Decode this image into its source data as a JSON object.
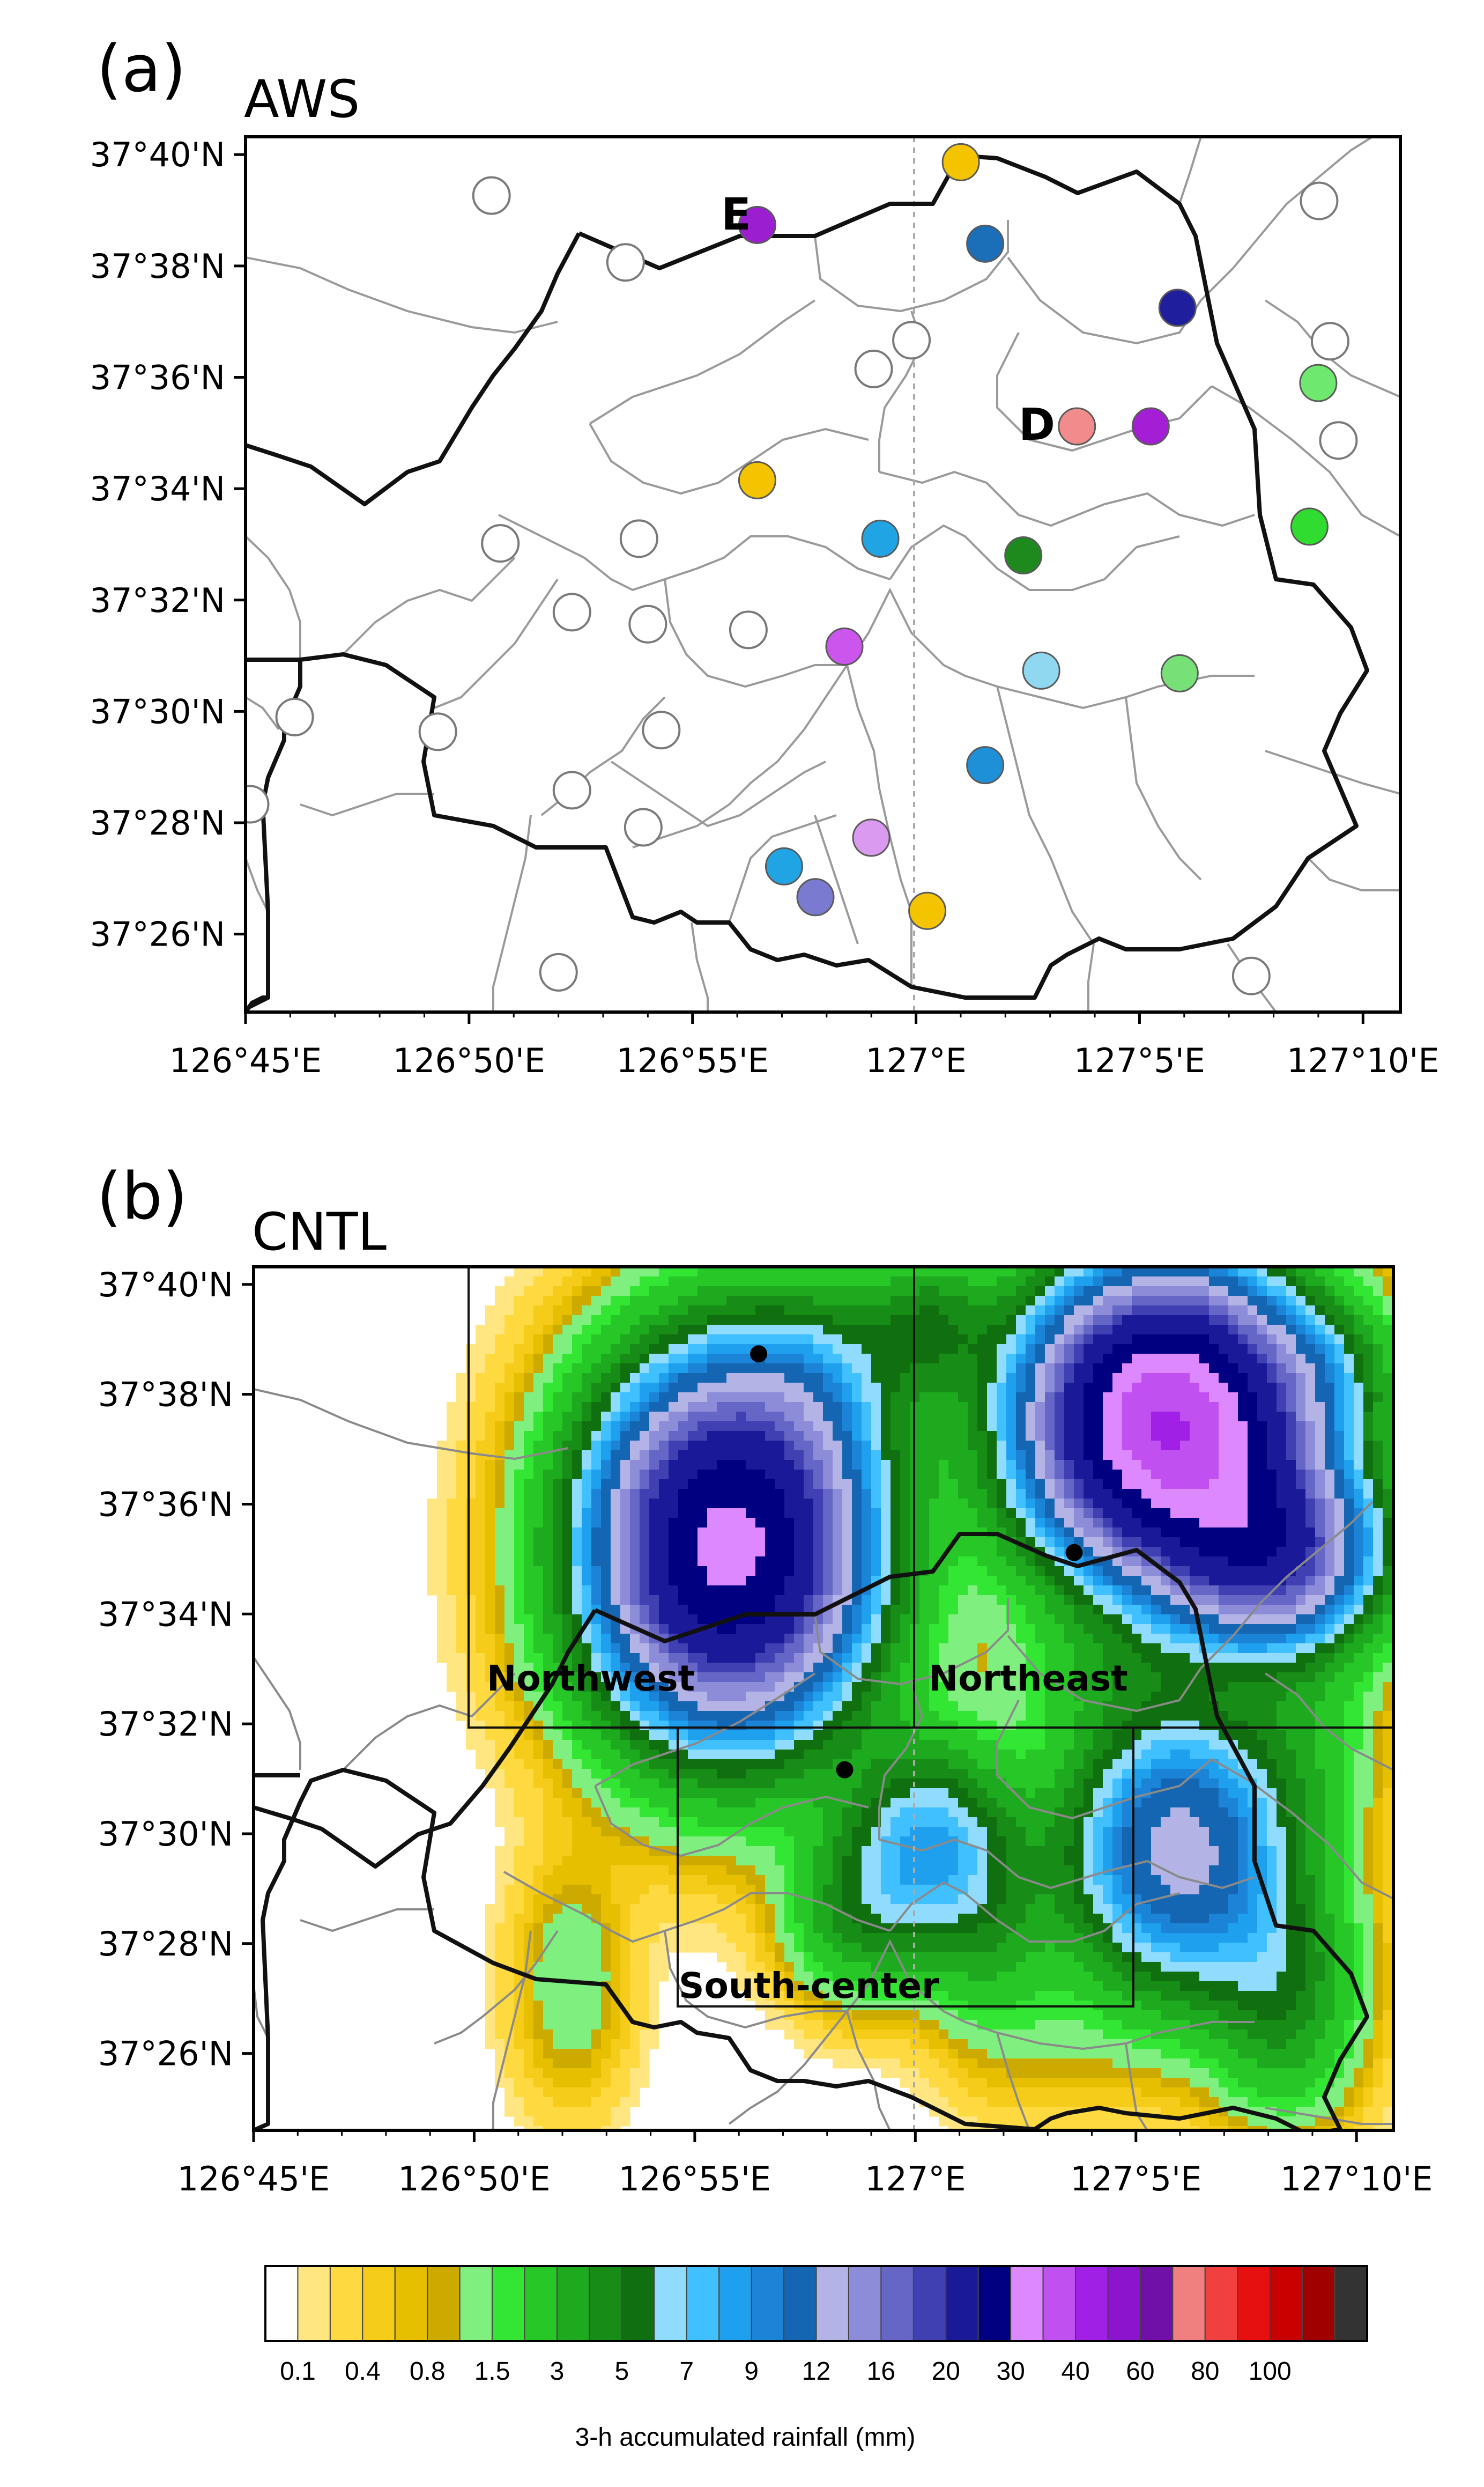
{
  "panels": {
    "a": {
      "letter": "(a)",
      "title": "AWS"
    },
    "b": {
      "letter": "(b)",
      "title": "CNTL"
    }
  },
  "chart_data": [
    {
      "type": "scatter",
      "panel": "(a)",
      "title": "AWS",
      "xlabel": "",
      "ylabel": "",
      "xlim": [
        126.75,
        127.1806
      ],
      "ylim": [
        37.41,
        37.672
      ],
      "xticks": [
        "126°45'E",
        "126°50'E",
        "126°55'E",
        "127°E",
        "127°5'E",
        "127°10'E"
      ],
      "yticks": [
        "37°40'N",
        "37°38'N",
        "37°36'N",
        "37°34'N",
        "37°32'N",
        "37°30'N",
        "37°28'N",
        "37°26'N"
      ],
      "station_labels": [
        "E",
        "D"
      ],
      "stations": [
        {
          "lon": 127.0167,
          "lat": 37.6644,
          "color": "#f5c400"
        },
        {
          "lon": 126.8417,
          "lat": 37.6544,
          "color": "#ffffff"
        },
        {
          "lon": 126.9408,
          "lat": 37.6456,
          "color": "#9b1fd1",
          "label": "E"
        },
        {
          "lon": 127.0258,
          "lat": 37.64,
          "color": "#1a6fb8"
        },
        {
          "lon": 127.1503,
          "lat": 37.6528,
          "color": "#ffffff"
        },
        {
          "lon": 126.8917,
          "lat": 37.6344,
          "color": "#ffffff"
        },
        {
          "lon": 127.0975,
          "lat": 37.6208,
          "color": "#1f1f9e"
        },
        {
          "lon": 126.9983,
          "lat": 37.6111,
          "color": "#ffffff"
        },
        {
          "lon": 127.1544,
          "lat": 37.6108,
          "color": "#ffffff"
        },
        {
          "lon": 126.9842,
          "lat": 37.6025,
          "color": "#ffffff"
        },
        {
          "lon": 127.15,
          "lat": 37.5983,
          "color": "#6ee86e"
        },
        {
          "lon": 127.06,
          "lat": 37.5853,
          "color": "#f28c8c",
          "label": "D"
        },
        {
          "lon": 127.0875,
          "lat": 37.5853,
          "color": "#a41ed6"
        },
        {
          "lon": 127.1575,
          "lat": 37.5811,
          "color": "#ffffff"
        },
        {
          "lon": 126.9408,
          "lat": 37.5692,
          "color": "#f5c400"
        },
        {
          "lon": 127.1467,
          "lat": 37.5553,
          "color": "#2fdc2f"
        },
        {
          "lon": 126.845,
          "lat": 37.5503,
          "color": "#ffffff"
        },
        {
          "lon": 126.8967,
          "lat": 37.5517,
          "color": "#ffffff"
        },
        {
          "lon": 126.9867,
          "lat": 37.5517,
          "color": "#20a4e4"
        },
        {
          "lon": 127.04,
          "lat": 37.5467,
          "color": "#1e8a1e"
        },
        {
          "lon": 126.8717,
          "lat": 37.5297,
          "color": "#ffffff"
        },
        {
          "lon": 126.9,
          "lat": 37.5261,
          "color": "#ffffff"
        },
        {
          "lon": 126.9375,
          "lat": 37.5244,
          "color": "#ffffff"
        },
        {
          "lon": 126.9733,
          "lat": 37.5194,
          "color": "#cc55ee"
        },
        {
          "lon": 127.0467,
          "lat": 37.5122,
          "color": "#8fd8f0"
        },
        {
          "lon": 127.0983,
          "lat": 37.5114,
          "color": "#77e077"
        },
        {
          "lon": 126.7683,
          "lat": 37.4983,
          "color": "#ffffff"
        },
        {
          "lon": 126.8217,
          "lat": 37.4939,
          "color": "#ffffff"
        },
        {
          "lon": 126.905,
          "lat": 37.4944,
          "color": "#ffffff"
        },
        {
          "lon": 127.0258,
          "lat": 37.4839,
          "color": "#1e90d8"
        },
        {
          "lon": 126.8717,
          "lat": 37.4764,
          "color": "#ffffff"
        },
        {
          "lon": 126.7517,
          "lat": 37.4722,
          "color": "#ffffff"
        },
        {
          "lon": 126.8983,
          "lat": 37.4653,
          "color": "#ffffff"
        },
        {
          "lon": 126.9833,
          "lat": 37.4622,
          "color": "#d99af0"
        },
        {
          "lon": 126.9508,
          "lat": 37.4536,
          "color": "#20a4e4"
        },
        {
          "lon": 126.9625,
          "lat": 37.4444,
          "color": "#7a7ad0"
        },
        {
          "lon": 127.0042,
          "lat": 37.4403,
          "color": "#f5c400"
        },
        {
          "lon": 126.8667,
          "lat": 37.4219,
          "color": "#ffffff"
        },
        {
          "lon": 127.125,
          "lat": 37.4208,
          "color": "#ffffff"
        }
      ]
    },
    {
      "type": "heatmap",
      "panel": "(b)",
      "title": "CNTL",
      "xlabel": "",
      "ylabel": "",
      "xlim": [
        126.75,
        127.1806
      ],
      "ylim": [
        37.41,
        37.672
      ],
      "xticks": [
        "126°45'E",
        "126°50'E",
        "126°55'E",
        "127°E",
        "127°5'E",
        "127°10'E"
      ],
      "yticks": [
        "37°40'N",
        "37°38'N",
        "37°36'N",
        "37°34'N",
        "37°32'N",
        "37°30'N",
        "37°28'N",
        "37°26'N"
      ],
      "regions": [
        {
          "name": "Northwest",
          "lon": [
            126.8333,
            127.0
          ],
          "lat": [
            37.53,
            37.672
          ]
        },
        {
          "name": "Northeast",
          "lon": [
            127.0,
            127.1806
          ],
          "lat": [
            37.53,
            37.672
          ]
        },
        {
          "name": "South-center",
          "lon": [
            126.9117,
            127.0825
          ],
          "lat": [
            37.43,
            37.53
          ]
        }
      ],
      "marked_stations": [
        {
          "lon": 126.9408,
          "lat": 37.6456
        },
        {
          "lon": 127.06,
          "lat": 37.5853
        },
        {
          "lon": 126.9733,
          "lat": 37.5194
        }
      ],
      "rain_cells": [
        {
          "lon": 126.93,
          "lat": 37.587,
          "peak": 32,
          "rlon": 0.07,
          "rlat": 0.075
        },
        {
          "lon": 126.965,
          "lat": 37.64,
          "peak": 3,
          "rlon": 0.045,
          "rlat": 0.04
        },
        {
          "lon": 127.005,
          "lat": 37.655,
          "peak": 4,
          "rlon": 0.035,
          "rlat": 0.03
        },
        {
          "lon": 127.095,
          "lat": 37.625,
          "peak": 40,
          "rlon": 0.07,
          "rlat": 0.06
        },
        {
          "lon": 127.135,
          "lat": 37.585,
          "peak": 18,
          "rlon": 0.055,
          "rlat": 0.04
        },
        {
          "lon": 127.155,
          "lat": 37.64,
          "peak": 3,
          "rlon": 0.04,
          "rlat": 0.03
        },
        {
          "lon": 127.07,
          "lat": 37.55,
          "peak": 1.5,
          "rlon": 0.05,
          "rlat": 0.03
        },
        {
          "lon": 127.1,
          "lat": 37.495,
          "peak": 13,
          "rlon": 0.06,
          "rlat": 0.06
        },
        {
          "lon": 127.005,
          "lat": 37.495,
          "peak": 8,
          "rlon": 0.045,
          "rlat": 0.045
        },
        {
          "lon": 126.975,
          "lat": 37.475,
          "peak": 3,
          "rlon": 0.035,
          "rlat": 0.035
        },
        {
          "lon": 127.03,
          "lat": 37.465,
          "peak": 2,
          "rlon": 0.035,
          "rlat": 0.05
        },
        {
          "lon": 126.87,
          "lat": 37.455,
          "peak": 1.5,
          "rlon": 0.03,
          "rlat": 0.05
        },
        {
          "lon": 127.14,
          "lat": 37.45,
          "peak": 4,
          "rlon": 0.04,
          "rlat": 0.05
        },
        {
          "lon": 127.06,
          "lat": 37.43,
          "peak": 0.4,
          "rlon": 0.04,
          "rlat": 0.03
        },
        {
          "lon": 127.15,
          "lat": 37.53,
          "peak": 1.5,
          "rlon": 0.04,
          "rlat": 0.04
        }
      ]
    },
    {
      "type": "colorbar",
      "title": "3-h accumulated rainfall (mm)",
      "tick_labels": [
        "0.1",
        "0.4",
        "0.8",
        "1.5",
        "3",
        "5",
        "7",
        "9",
        "12",
        "16",
        "20",
        "30",
        "40",
        "60",
        "80",
        "100"
      ],
      "levels": [
        0,
        0.1,
        0.2,
        0.4,
        0.6,
        0.8,
        1,
        1.5,
        2,
        3,
        4,
        5,
        6,
        7,
        8,
        9,
        10,
        12,
        14,
        16,
        18,
        20,
        25,
        30,
        35,
        40,
        50,
        60,
        70,
        80,
        90,
        100
      ],
      "colors": [
        "#ffffff",
        "#ffe680",
        "#ffd940",
        "#f5cc1a",
        "#e6bf00",
        "#ccaa00",
        "#7ff07f",
        "#33e633",
        "#26c726",
        "#1eaa1e",
        "#178c17",
        "#107010",
        "#8fdcff",
        "#40c0ff",
        "#1ea0ef",
        "#1c84d6",
        "#1466b3",
        "#b3b3e6",
        "#8c8cd9",
        "#6666c7",
        "#4040b3",
        "#1a1a99",
        "#000080",
        "#dd88ff",
        "#c050f0",
        "#a020e6",
        "#8c14cc",
        "#7010a8",
        "#f08080",
        "#f04040",
        "#e61010",
        "#c80000",
        "#a00000",
        "#333333"
      ]
    }
  ]
}
